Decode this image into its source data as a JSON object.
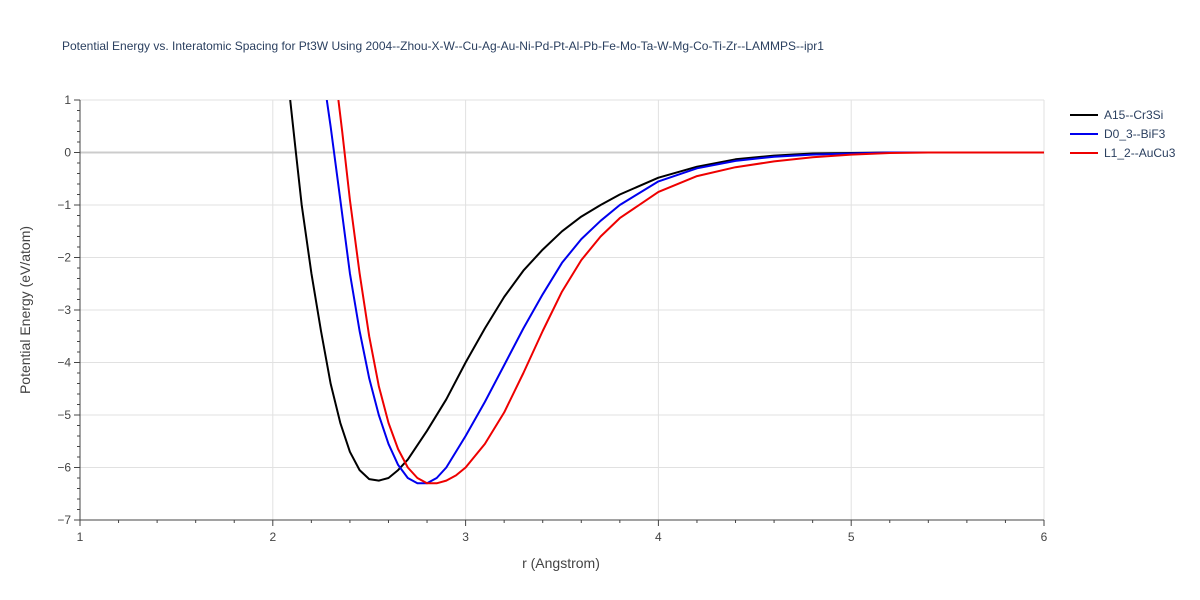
{
  "chart_data": {
    "type": "line",
    "title": "Potential Energy vs. Interatomic Spacing for Pt3W Using 2004--Zhou-X-W--Cu-Ag-Au-Ni-Pd-Pt-Al-Pb-Fe-Mo-Ta-W-Mg-Co-Ti-Zr--LAMMPS--ipr1",
    "xlabel": "r (Angstrom)",
    "ylabel": "Potential Energy (eV/atom)",
    "xlim": [
      1,
      6
    ],
    "ylim": [
      -7,
      1
    ],
    "xticks": [
      1,
      2,
      3,
      4,
      5,
      6
    ],
    "xtick_labels": [
      "1",
      "2",
      "3",
      "4",
      "5",
      "6"
    ],
    "yticks": [
      1,
      0,
      -1,
      -2,
      -3,
      -4,
      -5,
      -6,
      -7
    ],
    "ytick_labels": [
      "1",
      "0",
      "−1",
      "−2",
      "−3",
      "−4",
      "−5",
      "−6",
      "−7"
    ],
    "grid": true,
    "legend_position": "top-right",
    "series": [
      {
        "name": "A15--Cr3Si",
        "color": "#000000",
        "x": [
          2.09,
          2.12,
          2.15,
          2.2,
          2.25,
          2.3,
          2.35,
          2.4,
          2.45,
          2.5,
          2.55,
          2.6,
          2.65,
          2.7,
          2.8,
          2.9,
          3.0,
          3.1,
          3.2,
          3.3,
          3.4,
          3.5,
          3.6,
          3.7,
          3.8,
          4.0,
          4.2,
          4.4,
          4.6,
          4.8,
          5.0,
          5.2,
          5.4,
          5.6,
          5.8,
          6.0
        ],
        "y": [
          1.0,
          0.0,
          -1.0,
          -2.3,
          -3.4,
          -4.4,
          -5.15,
          -5.7,
          -6.05,
          -6.22,
          -6.25,
          -6.2,
          -6.05,
          -5.85,
          -5.3,
          -4.7,
          -4.0,
          -3.35,
          -2.75,
          -2.25,
          -1.85,
          -1.5,
          -1.22,
          -1.0,
          -0.8,
          -0.48,
          -0.27,
          -0.13,
          -0.06,
          -0.02,
          -0.01,
          0.0,
          0.0,
          0.0,
          0.0,
          0.0
        ]
      },
      {
        "name": "D0_3--BiF3",
        "color": "#0000ee",
        "x": [
          2.28,
          2.3,
          2.35,
          2.4,
          2.45,
          2.5,
          2.55,
          2.6,
          2.65,
          2.7,
          2.75,
          2.8,
          2.85,
          2.9,
          3.0,
          3.1,
          3.2,
          3.3,
          3.4,
          3.5,
          3.6,
          3.7,
          3.8,
          4.0,
          4.2,
          4.4,
          4.6,
          4.8,
          5.0,
          5.2,
          5.4,
          5.6,
          5.8,
          6.0
        ],
        "y": [
          1.0,
          0.5,
          -0.9,
          -2.3,
          -3.4,
          -4.3,
          -5.0,
          -5.55,
          -5.95,
          -6.2,
          -6.3,
          -6.3,
          -6.2,
          -6.0,
          -5.4,
          -4.75,
          -4.05,
          -3.35,
          -2.7,
          -2.1,
          -1.65,
          -1.3,
          -1.0,
          -0.55,
          -0.3,
          -0.16,
          -0.08,
          -0.04,
          -0.02,
          0.0,
          0.0,
          0.0,
          0.0,
          0.0
        ]
      },
      {
        "name": "L1_2--AuCu3",
        "color": "#ee0000",
        "x": [
          2.34,
          2.36,
          2.4,
          2.45,
          2.5,
          2.55,
          2.6,
          2.65,
          2.7,
          2.75,
          2.8,
          2.85,
          2.9,
          2.95,
          3.0,
          3.1,
          3.2,
          3.3,
          3.4,
          3.5,
          3.6,
          3.7,
          3.8,
          4.0,
          4.2,
          4.4,
          4.6,
          4.8,
          5.0,
          5.2,
          5.4,
          5.6,
          5.8,
          6.0
        ],
        "y": [
          1.0,
          0.4,
          -0.9,
          -2.3,
          -3.5,
          -4.45,
          -5.15,
          -5.65,
          -6.0,
          -6.2,
          -6.3,
          -6.3,
          -6.25,
          -6.15,
          -6.0,
          -5.55,
          -4.95,
          -4.2,
          -3.4,
          -2.65,
          -2.05,
          -1.6,
          -1.25,
          -0.75,
          -0.45,
          -0.28,
          -0.17,
          -0.09,
          -0.04,
          -0.01,
          0.0,
          0.0,
          0.0,
          0.0
        ]
      }
    ]
  }
}
